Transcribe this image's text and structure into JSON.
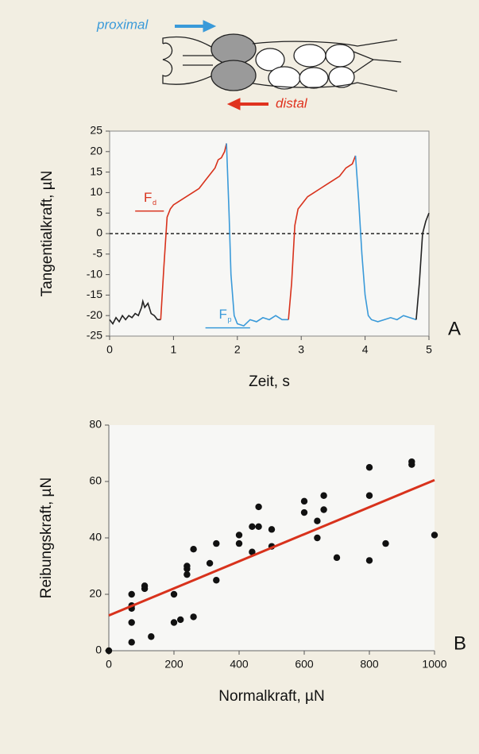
{
  "diagram": {
    "proximal": "proximal",
    "distal": "distal",
    "proximal_color": "#3a9ad9",
    "distal_color": "#e0321e"
  },
  "chart_data": [
    {
      "type": "line",
      "panel": "A",
      "xlabel": "Zeit, s",
      "ylabel": "Tangentialkraft, µN",
      "xlim": [
        0,
        5
      ],
      "ylim": [
        -25,
        25
      ],
      "xticks": [
        0,
        1,
        2,
        3,
        4,
        5
      ],
      "yticks": [
        -25,
        -20,
        -15,
        -10,
        -5,
        0,
        5,
        10,
        15,
        20,
        25
      ],
      "reference_line": {
        "y": 0,
        "style": "dashed"
      },
      "series": [
        {
          "color": "#222222",
          "x": [
            0,
            0.05,
            0.1,
            0.15,
            0.2,
            0.25,
            0.3,
            0.35,
            0.4,
            0.45,
            0.5,
            0.52,
            0.55,
            0.6,
            0.65,
            0.7,
            0.75,
            0.8
          ],
          "values": [
            -21,
            -22,
            -20.5,
            -21.5,
            -20,
            -21,
            -20,
            -20.5,
            -19.5,
            -20,
            -18,
            -16.5,
            -18,
            -17,
            -19.5,
            -20,
            -21,
            -21
          ]
        },
        {
          "color": "#d8321c",
          "x": [
            0.8,
            0.85,
            0.9,
            0.95,
            1.0,
            1.1,
            1.2,
            1.3,
            1.4,
            1.5,
            1.6,
            1.65,
            1.7,
            1.75,
            1.8,
            1.83
          ],
          "values": [
            -21,
            -8,
            4,
            6,
            7,
            8,
            9,
            10,
            11,
            13,
            15,
            16,
            18,
            18.5,
            20,
            22
          ]
        },
        {
          "color": "#3a9ad9",
          "x": [
            1.83,
            1.87,
            1.9,
            1.95,
            2.0,
            2.1,
            2.2,
            2.3,
            2.4,
            2.5,
            2.6,
            2.7,
            2.8
          ],
          "values": [
            22,
            5,
            -10,
            -20,
            -22,
            -22.5,
            -21,
            -21.5,
            -20.5,
            -21,
            -20,
            -21,
            -21
          ]
        },
        {
          "color": "#d8321c",
          "x": [
            2.8,
            2.85,
            2.9,
            2.95,
            3.0,
            3.1,
            3.2,
            3.3,
            3.4,
            3.5,
            3.6,
            3.7,
            3.8,
            3.85
          ],
          "values": [
            -21,
            -12,
            2,
            6,
            7,
            9,
            10,
            11,
            12,
            13,
            14,
            16,
            17,
            19
          ]
        },
        {
          "color": "#3a9ad9",
          "x": [
            3.85,
            3.9,
            3.95,
            4.0,
            4.05,
            4.1,
            4.2,
            4.3,
            4.4,
            4.5,
            4.6,
            4.7,
            4.8
          ],
          "values": [
            19,
            8,
            -5,
            -15,
            -20,
            -21,
            -21.5,
            -21,
            -20.5,
            -21,
            -20,
            -20.5,
            -21
          ]
        },
        {
          "color": "#222222",
          "x": [
            4.8,
            4.85,
            4.9,
            4.95,
            5.0
          ],
          "values": [
            -21,
            -12,
            0,
            3,
            5
          ]
        }
      ],
      "annotations": [
        {
          "text": "F",
          "subscript": "d",
          "color": "#d8321c",
          "y": 5.5,
          "x_range": [
            0.4,
            0.85
          ]
        },
        {
          "text": "F",
          "subscript": "p",
          "color": "#3a9ad9",
          "y": -23,
          "x_range": [
            1.5,
            2.2
          ]
        }
      ]
    },
    {
      "type": "scatter",
      "panel": "B",
      "xlabel": "Normalkraft, µN",
      "ylabel": "Reibungskraft, µN",
      "xlim": [
        0,
        1000
      ],
      "ylim": [
        0,
        80
      ],
      "xticks": [
        0,
        200,
        400,
        600,
        800,
        1000
      ],
      "yticks": [
        0,
        20,
        40,
        60,
        80
      ],
      "series": [
        {
          "color": "#111111",
          "x": [
            0,
            70,
            70,
            70,
            70,
            70,
            110,
            110,
            130,
            200,
            200,
            220,
            240,
            240,
            240,
            260,
            260,
            310,
            330,
            330,
            400,
            400,
            440,
            440,
            460,
            460,
            500,
            500,
            600,
            600,
            640,
            640,
            660,
            660,
            700,
            800,
            800,
            800,
            850,
            930,
            930,
            1000
          ],
          "values": [
            0,
            3,
            10,
            15,
            16,
            20,
            22,
            23,
            5,
            10,
            20,
            11,
            27,
            29,
            30,
            36,
            12,
            31,
            25,
            38,
            38,
            41,
            35,
            44,
            44,
            51,
            37,
            43,
            49,
            53,
            40,
            46,
            50,
            55,
            33,
            32,
            55,
            65,
            38,
            66,
            67,
            41
          ]
        }
      ],
      "fit": {
        "color": "#d8321c",
        "x": [
          0,
          1000
        ],
        "values": [
          12.5,
          60.5
        ]
      }
    }
  ]
}
